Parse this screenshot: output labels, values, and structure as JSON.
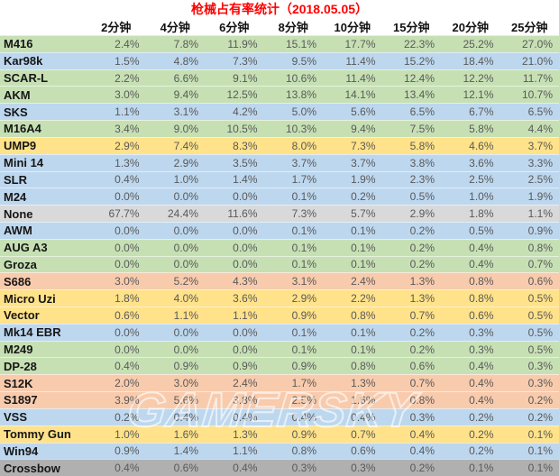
{
  "chart_data": {
    "type": "table",
    "title": "枪械占有率统计（2018.05.05）",
    "title_color": "#ff0000",
    "columns": [
      "2分钟",
      "4分钟",
      "6分钟",
      "8分钟",
      "10分钟",
      "15分钟",
      "20分钟",
      "25分钟"
    ],
    "rows": [
      {
        "name": "M416",
        "color": "green",
        "values": [
          "2.4%",
          "7.8%",
          "11.9%",
          "15.1%",
          "17.7%",
          "22.3%",
          "25.2%",
          "27.0%"
        ]
      },
      {
        "name": "Kar98k",
        "color": "blue",
        "values": [
          "1.5%",
          "4.8%",
          "7.3%",
          "9.5%",
          "11.4%",
          "15.2%",
          "18.4%",
          "21.0%"
        ]
      },
      {
        "name": "SCAR-L",
        "color": "green",
        "values": [
          "2.2%",
          "6.6%",
          "9.1%",
          "10.6%",
          "11.4%",
          "12.4%",
          "12.2%",
          "11.7%"
        ]
      },
      {
        "name": "AKM",
        "color": "green",
        "values": [
          "3.0%",
          "9.4%",
          "12.5%",
          "13.8%",
          "14.1%",
          "13.4%",
          "12.1%",
          "10.7%"
        ]
      },
      {
        "name": "SKS",
        "color": "blue",
        "values": [
          "1.1%",
          "3.1%",
          "4.2%",
          "5.0%",
          "5.6%",
          "6.5%",
          "6.7%",
          "6.5%"
        ]
      },
      {
        "name": "M16A4",
        "color": "green",
        "values": [
          "3.4%",
          "9.0%",
          "10.5%",
          "10.3%",
          "9.4%",
          "7.5%",
          "5.8%",
          "4.4%"
        ]
      },
      {
        "name": "UMP9",
        "color": "yellow",
        "values": [
          "2.9%",
          "7.4%",
          "8.3%",
          "8.0%",
          "7.3%",
          "5.8%",
          "4.6%",
          "3.7%"
        ]
      },
      {
        "name": "Mini 14",
        "color": "blue",
        "values": [
          "1.3%",
          "2.9%",
          "3.5%",
          "3.7%",
          "3.7%",
          "3.8%",
          "3.6%",
          "3.3%"
        ]
      },
      {
        "name": "SLR",
        "color": "blue",
        "values": [
          "0.4%",
          "1.0%",
          "1.4%",
          "1.7%",
          "1.9%",
          "2.3%",
          "2.5%",
          "2.5%"
        ]
      },
      {
        "name": "M24",
        "color": "blue",
        "values": [
          "0.0%",
          "0.0%",
          "0.0%",
          "0.1%",
          "0.2%",
          "0.5%",
          "1.0%",
          "1.9%"
        ]
      },
      {
        "name": "None",
        "color": "gray",
        "values": [
          "67.7%",
          "24.4%",
          "11.6%",
          "7.3%",
          "5.7%",
          "2.9%",
          "1.8%",
          "1.1%"
        ]
      },
      {
        "name": "AWM",
        "color": "blue",
        "values": [
          "0.0%",
          "0.0%",
          "0.0%",
          "0.1%",
          "0.1%",
          "0.2%",
          "0.5%",
          "0.9%"
        ]
      },
      {
        "name": "AUG A3",
        "color": "green",
        "values": [
          "0.0%",
          "0.0%",
          "0.0%",
          "0.1%",
          "0.1%",
          "0.2%",
          "0.4%",
          "0.8%"
        ]
      },
      {
        "name": "Groza",
        "color": "green",
        "values": [
          "0.0%",
          "0.0%",
          "0.0%",
          "0.1%",
          "0.1%",
          "0.2%",
          "0.4%",
          "0.7%"
        ]
      },
      {
        "name": "S686",
        "color": "salmon",
        "values": [
          "3.0%",
          "5.2%",
          "4.3%",
          "3.1%",
          "2.4%",
          "1.3%",
          "0.8%",
          "0.6%"
        ]
      },
      {
        "name": "Micro Uzi",
        "color": "yellow",
        "values": [
          "1.8%",
          "4.0%",
          "3.6%",
          "2.9%",
          "2.2%",
          "1.3%",
          "0.8%",
          "0.5%"
        ]
      },
      {
        "name": "Vector",
        "color": "yellow",
        "values": [
          "0.6%",
          "1.1%",
          "1.1%",
          "0.9%",
          "0.8%",
          "0.7%",
          "0.6%",
          "0.5%"
        ]
      },
      {
        "name": "Mk14 EBR",
        "color": "blue",
        "values": [
          "0.0%",
          "0.0%",
          "0.0%",
          "0.1%",
          "0.1%",
          "0.2%",
          "0.3%",
          "0.5%"
        ]
      },
      {
        "name": "M249",
        "color": "green",
        "values": [
          "0.0%",
          "0.0%",
          "0.0%",
          "0.1%",
          "0.1%",
          "0.2%",
          "0.3%",
          "0.5%"
        ]
      },
      {
        "name": "DP-28",
        "color": "green",
        "values": [
          "0.4%",
          "0.9%",
          "0.9%",
          "0.9%",
          "0.8%",
          "0.6%",
          "0.4%",
          "0.3%"
        ]
      },
      {
        "name": "S12K",
        "color": "salmon",
        "values": [
          "2.0%",
          "3.0%",
          "2.4%",
          "1.7%",
          "1.3%",
          "0.7%",
          "0.4%",
          "0.3%"
        ]
      },
      {
        "name": "S1897",
        "color": "salmon",
        "values": [
          "3.9%",
          "5.6%",
          "3.8%",
          "2.5%",
          "1.6%",
          "0.8%",
          "0.4%",
          "0.2%"
        ]
      },
      {
        "name": "VSS",
        "color": "blue",
        "values": [
          "0.2%",
          "0.4%",
          "0.4%",
          "0.4%",
          "0.4%",
          "0.3%",
          "0.2%",
          "0.2%"
        ]
      },
      {
        "name": "Tommy Gun",
        "color": "yellow",
        "values": [
          "1.0%",
          "1.6%",
          "1.3%",
          "0.9%",
          "0.7%",
          "0.4%",
          "0.2%",
          "0.1%"
        ]
      },
      {
        "name": "Win94",
        "color": "blue",
        "values": [
          "0.9%",
          "1.4%",
          "1.1%",
          "0.8%",
          "0.6%",
          "0.4%",
          "0.2%",
          "0.1%"
        ]
      },
      {
        "name": "Crossbow",
        "color": "darkgray",
        "values": [
          "0.4%",
          "0.6%",
          "0.4%",
          "0.3%",
          "0.3%",
          "0.2%",
          "0.1%",
          "0.1%"
        ]
      }
    ],
    "row_colors": {
      "green": "#c6e0b4",
      "blue": "#bdd7ee",
      "yellow": "#ffe289",
      "gray": "#d9d9d9",
      "salmon": "#f8cbad",
      "darkgray": "#b0b0b0"
    },
    "value_text_color": "#595959",
    "name_text_color": "#161616"
  },
  "watermark": {
    "text": "GAMERSKY"
  }
}
